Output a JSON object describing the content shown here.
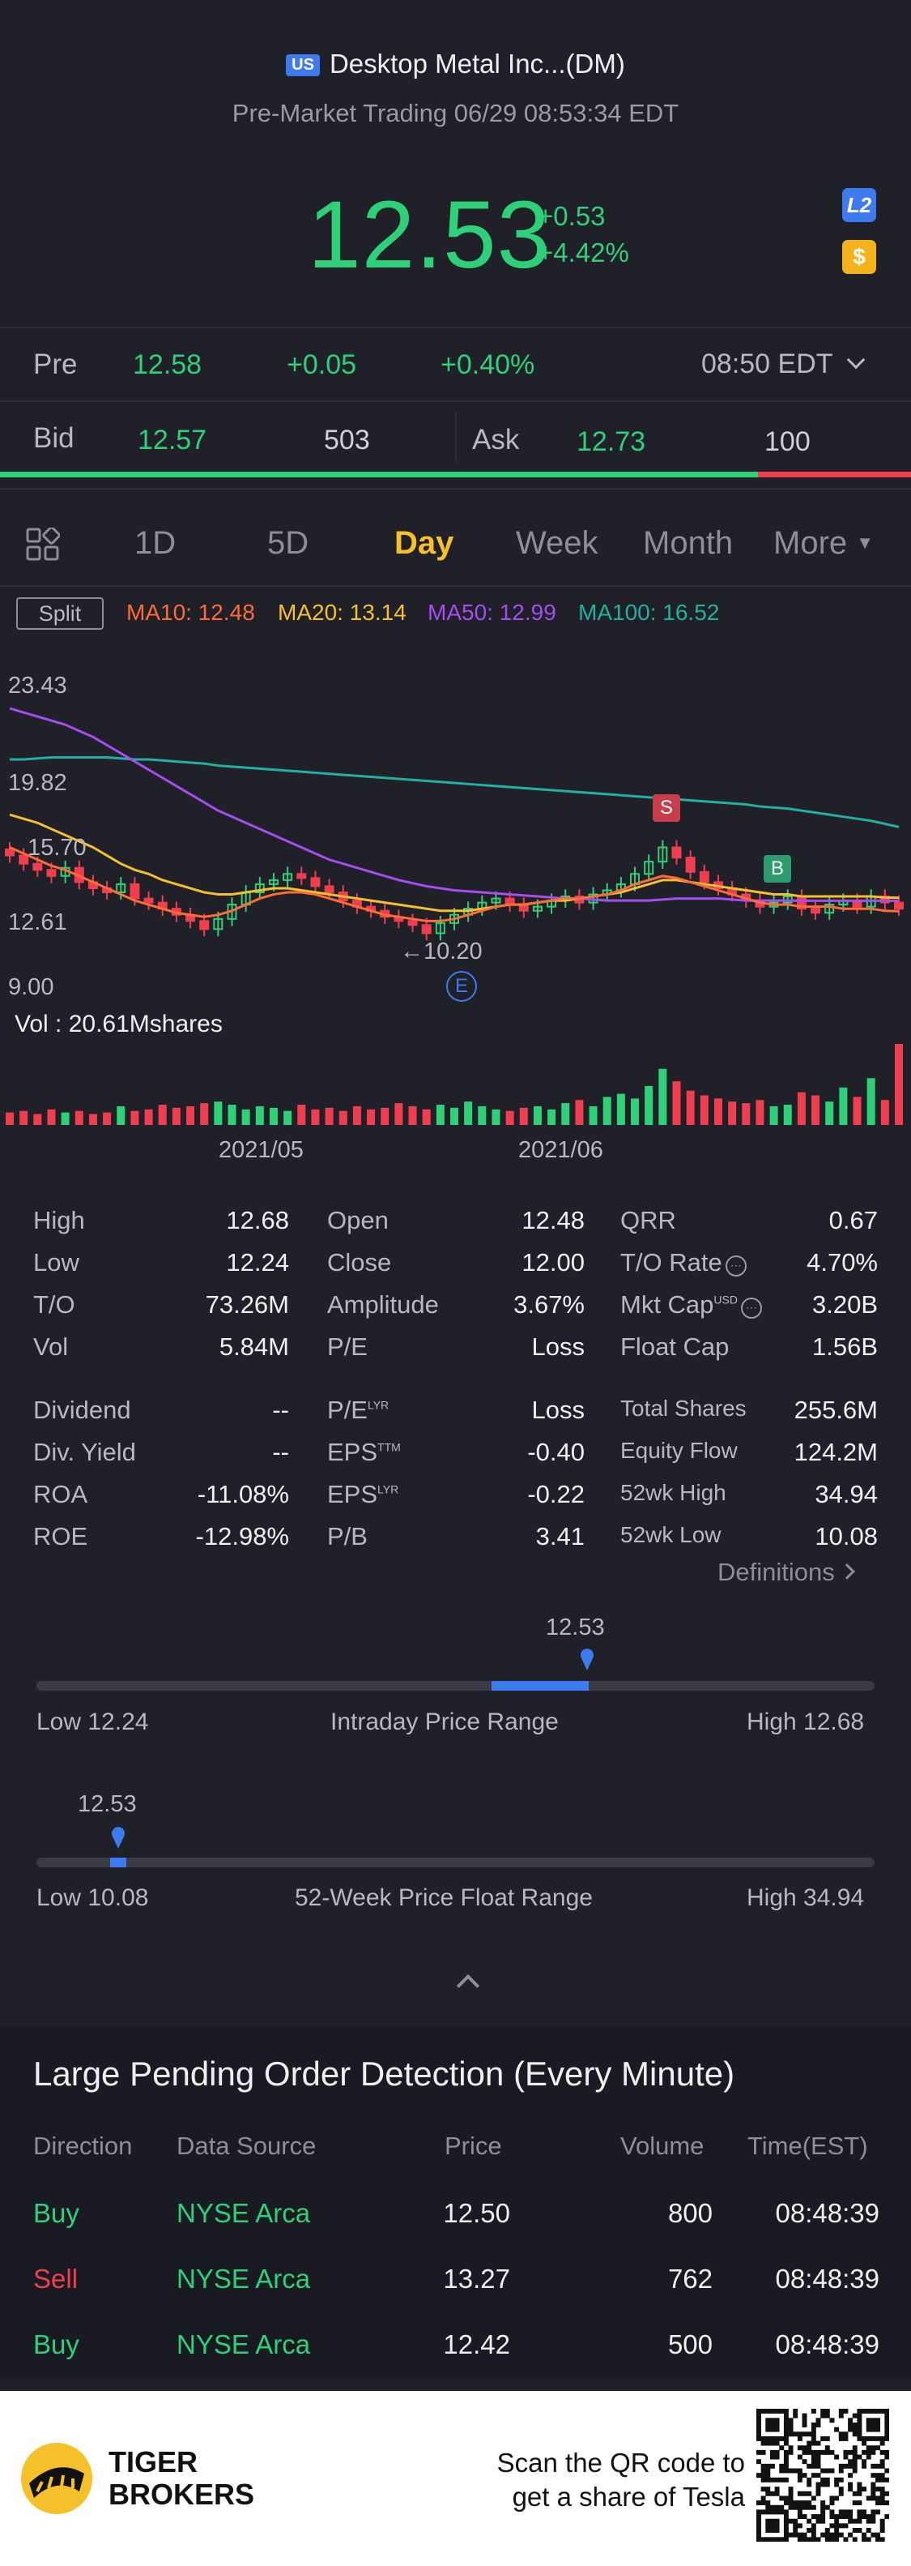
{
  "header": {
    "market_badge": "US",
    "name": "Desktop Metal Inc...(DM)",
    "status": "Pre-Market Trading 06/29 08:53:34 EDT",
    "price": "12.53",
    "change_abs": "+0.53",
    "change_pct": "+4.42%",
    "l2_badge": "L2",
    "currency_badge": "$"
  },
  "pre_row": {
    "label": "Pre",
    "price": "12.58",
    "change": "+0.05",
    "pct": "+0.40%",
    "time": "08:50 EDT"
  },
  "bidask": {
    "bid_label": "Bid",
    "bid": "12.57",
    "bid_size": "503",
    "ask_label": "Ask",
    "ask": "12.73",
    "ask_size": "100",
    "bid_share": 0.832
  },
  "tabs": [
    "1D",
    "5D",
    "Day",
    "Week",
    "Month",
    "More"
  ],
  "ma": {
    "split": "Split",
    "ma10": "MA10: 12.48",
    "ma20": "MA20: 13.14",
    "ma50": "MA50: 12.99",
    "ma100": "MA100: 16.52",
    "colors": {
      "ma10": "#ff6b35",
      "ma20": "#f6c02a",
      "ma50": "#a64cf0",
      "ma100": "#20b2a0"
    }
  },
  "chart_data": {
    "type": "candlestick",
    "y_axis_labels": [
      "23.43",
      "19.82",
      "15.70",
      "12.61",
      "9.00"
    ],
    "x_axis_labels": [
      "2021/05",
      "2021/06"
    ],
    "low_marker": "←10.20",
    "vol_label": "Vol  : 20.61Mshares",
    "markers": {
      "sell": "S",
      "buy": "B",
      "earnings": "E"
    },
    "ylim": [
      9.0,
      23.43
    ],
    "closes": [
      15.2,
      14.8,
      14.5,
      14.2,
      14.6,
      13.9,
      13.6,
      13.4,
      13.8,
      13.1,
      12.9,
      12.6,
      12.3,
      12.0,
      11.6,
      12.1,
      12.8,
      13.4,
      13.8,
      14.0,
      14.3,
      14.1,
      13.7,
      13.4,
      13.0,
      12.7,
      12.5,
      12.2,
      12.0,
      11.8,
      11.4,
      11.9,
      12.3,
      12.6,
      12.9,
      13.1,
      12.8,
      12.5,
      12.7,
      13.0,
      13.2,
      12.9,
      13.3,
      13.5,
      13.8,
      14.3,
      14.9,
      15.6,
      15.1,
      14.4,
      13.9,
      13.6,
      13.3,
      13.0,
      12.7,
      12.9,
      13.2,
      12.6,
      12.4,
      12.8,
      13.0,
      12.7,
      13.2,
      12.9,
      12.6
    ],
    "volumes": [
      0.8,
      0.9,
      0.7,
      1.0,
      0.8,
      0.9,
      0.7,
      0.8,
      1.2,
      0.9,
      1.0,
      1.3,
      1.1,
      1.2,
      1.4,
      1.5,
      1.3,
      1.0,
      1.2,
      1.1,
      0.9,
      1.3,
      1.0,
      1.1,
      0.9,
      1.2,
      1.0,
      1.1,
      1.4,
      1.2,
      1.0,
      1.3,
      1.1,
      1.5,
      1.2,
      1.0,
      0.9,
      1.1,
      1.2,
      1.0,
      1.4,
      1.6,
      1.2,
      1.8,
      2.0,
      1.7,
      2.5,
      3.6,
      2.8,
      2.2,
      1.9,
      1.7,
      1.5,
      1.4,
      1.6,
      1.2,
      1.3,
      2.1,
      1.9,
      1.5,
      2.4,
      1.8,
      3.0,
      1.6,
      5.2
    ],
    "ma100": [
      19.9,
      19.9,
      19.95,
      20.0,
      20.0,
      20.0,
      20.0,
      20.0,
      19.95,
      19.9,
      19.9,
      19.85,
      19.8,
      19.75,
      19.7,
      19.6,
      19.55,
      19.5,
      19.45,
      19.4,
      19.35,
      19.3,
      19.25,
      19.2,
      19.15,
      19.1,
      19.05,
      19.0,
      18.95,
      18.9,
      18.85,
      18.8,
      18.75,
      18.7,
      18.65,
      18.6,
      18.55,
      18.5,
      18.45,
      18.4,
      18.35,
      18.3,
      18.25,
      18.2,
      18.15,
      18.1,
      18.05,
      18.0,
      17.95,
      17.9,
      17.85,
      17.8,
      17.75,
      17.7,
      17.6,
      17.55,
      17.5,
      17.4,
      17.3,
      17.2,
      17.1,
      17.0,
      16.9,
      16.75,
      16.6
    ],
    "ma50": [
      22.4,
      22.2,
      22.0,
      21.8,
      21.6,
      21.3,
      21.0,
      20.6,
      20.2,
      19.8,
      19.4,
      19.0,
      18.6,
      18.2,
      17.8,
      17.4,
      17.1,
      16.8,
      16.5,
      16.2,
      15.9,
      15.6,
      15.3,
      15.0,
      14.8,
      14.6,
      14.4,
      14.2,
      14.0,
      13.85,
      13.7,
      13.6,
      13.5,
      13.45,
      13.4,
      13.35,
      13.3,
      13.25,
      13.2,
      13.15,
      13.1,
      13.1,
      13.05,
      13.0,
      13.0,
      13.0,
      13.0,
      13.05,
      13.1,
      13.1,
      13.1,
      13.1,
      13.05,
      13.0,
      13.0,
      13.0,
      13.0,
      12.99,
      12.99,
      12.99,
      12.99,
      12.99,
      12.99,
      12.99,
      12.99
    ],
    "ma20": [
      17.2,
      17.0,
      16.8,
      16.5,
      16.2,
      15.9,
      15.6,
      15.2,
      14.8,
      14.5,
      14.3,
      14.0,
      13.8,
      13.6,
      13.4,
      13.3,
      13.3,
      13.4,
      13.5,
      13.6,
      13.6,
      13.5,
      13.4,
      13.3,
      13.2,
      13.1,
      13.0,
      12.9,
      12.8,
      12.7,
      12.6,
      12.5,
      12.5,
      12.5,
      12.6,
      12.7,
      12.8,
      12.8,
      12.9,
      13.0,
      13.0,
      13.1,
      13.2,
      13.3,
      13.4,
      13.6,
      13.8,
      14.0,
      14.0,
      13.9,
      13.8,
      13.7,
      13.6,
      13.5,
      13.4,
      13.3,
      13.3,
      13.2,
      13.2,
      13.2,
      13.2,
      13.2,
      13.2,
      13.15,
      13.14
    ],
    "ma10": [
      15.6,
      15.3,
      15.0,
      14.7,
      14.5,
      14.2,
      13.9,
      13.6,
      13.3,
      13.0,
      12.8,
      12.6,
      12.4,
      12.3,
      12.2,
      12.3,
      12.5,
      12.8,
      13.1,
      13.3,
      13.4,
      13.4,
      13.3,
      13.1,
      12.9,
      12.7,
      12.5,
      12.3,
      12.2,
      12.1,
      12.0,
      12.0,
      12.1,
      12.3,
      12.5,
      12.7,
      12.8,
      12.8,
      12.9,
      13.0,
      13.1,
      13.1,
      13.2,
      13.3,
      13.5,
      13.8,
      14.0,
      14.2,
      14.1,
      13.9,
      13.7,
      13.5,
      13.3,
      13.1,
      12.9,
      12.8,
      12.8,
      12.7,
      12.7,
      12.7,
      12.6,
      12.6,
      12.6,
      12.5,
      12.48
    ]
  },
  "stats": {
    "col1": [
      [
        "High",
        "12.68"
      ],
      [
        "Low",
        "12.24"
      ],
      [
        "T/O",
        "73.26M"
      ],
      [
        "Vol",
        "5.84M"
      ]
    ],
    "col2": [
      [
        "Open",
        "12.48"
      ],
      [
        "Close",
        "12.00"
      ],
      [
        "Amplitude",
        "3.67%"
      ],
      [
        "P/E",
        "Loss"
      ]
    ],
    "col3": [
      [
        "QRR",
        "0.67"
      ],
      [
        "T/O Rate",
        "4.70%"
      ],
      [
        "Mkt Cap",
        "3.20B"
      ],
      [
        "Float Cap",
        "1.56B"
      ]
    ],
    "col1b": [
      [
        "Dividend",
        "--"
      ],
      [
        "Div. Yield",
        "--"
      ],
      [
        "ROA",
        "-11.08%"
      ],
      [
        "ROE",
        "-12.98%"
      ]
    ],
    "col2b": [
      [
        "P/E",
        "Loss",
        "LYR"
      ],
      [
        "EPS",
        "-0.40",
        "TTM"
      ],
      [
        "EPS",
        "-0.22",
        "LYR"
      ],
      [
        "P/B",
        "3.41",
        ""
      ]
    ],
    "col3b": [
      [
        "Total Shares",
        "255.6M"
      ],
      [
        "Equity Flow",
        "124.2M"
      ],
      [
        "52wk High",
        "34.94"
      ],
      [
        "52wk Low",
        "10.08"
      ]
    ],
    "mktcap_sup": "USD",
    "definitions": "Definitions"
  },
  "intraday": {
    "current": "12.53",
    "low": "Low 12.24",
    "high": "High 12.68",
    "title": "Intraday Price Range",
    "fill_from": 0.63,
    "fill_to": 0.76,
    "marker": 0.76
  },
  "week52": {
    "current": "12.53",
    "low": "Low 10.08",
    "high": "High 34.94",
    "title": "52-Week Price Float Range",
    "marker": 0.1
  },
  "large_orders": {
    "title": "Large Pending Order Detection (Every Minute)",
    "headers": [
      "Direction",
      "Data Source",
      "Price",
      "Volume",
      "Time(EST)"
    ],
    "rows": [
      {
        "dir": "Buy",
        "src": "NYSE Arca",
        "price": "12.50",
        "vol": "800",
        "time": "08:48:39"
      },
      {
        "dir": "Sell",
        "src": "NYSE Arca",
        "price": "13.27",
        "vol": "762",
        "time": "08:48:39"
      },
      {
        "dir": "Buy",
        "src": "NYSE Arca",
        "price": "12.42",
        "vol": "500",
        "time": "08:48:39"
      }
    ]
  },
  "footer": {
    "brand1": "TIGER",
    "brand2": "BROKERS",
    "cta1": "Scan the QR code to",
    "cta2": "get a share of Tesla"
  }
}
